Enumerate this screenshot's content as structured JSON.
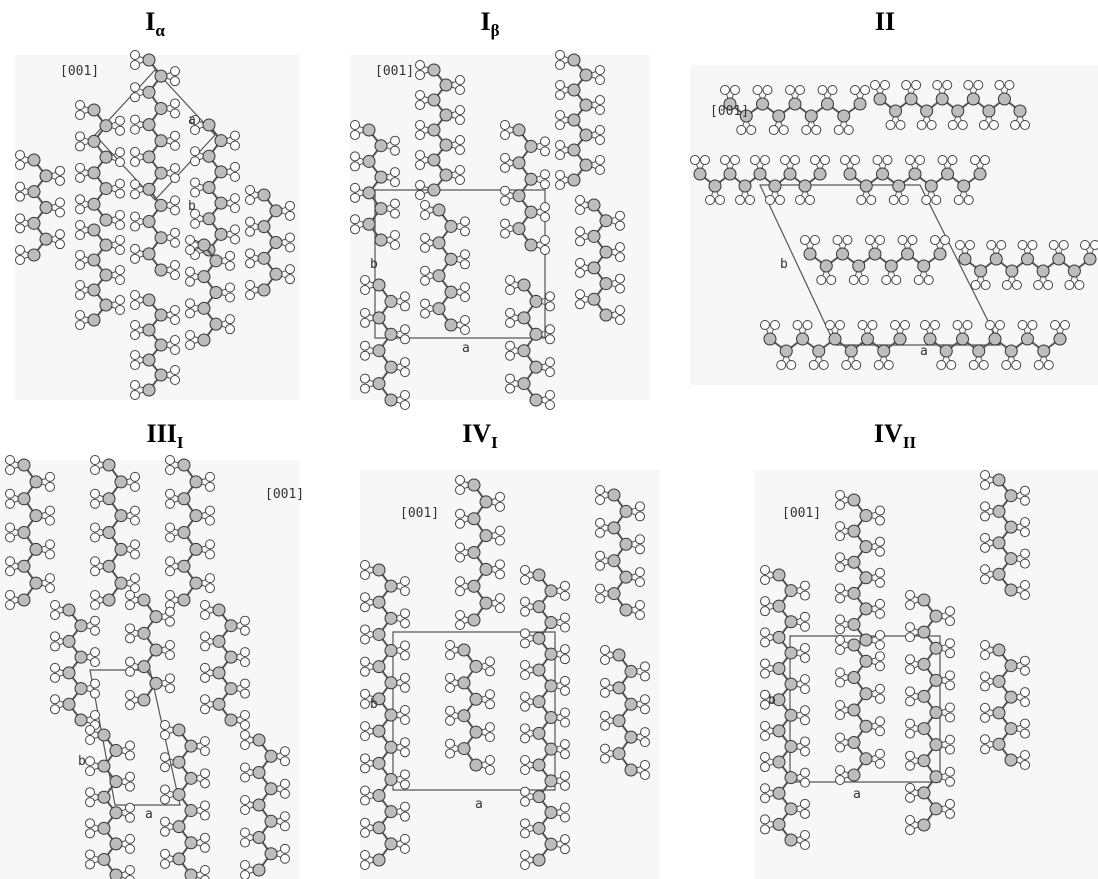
{
  "panels": [
    {
      "title": "I",
      "subscript": "α",
      "direction": "[001]",
      "axis_a": "a",
      "axis_b": "b"
    },
    {
      "title": "I",
      "subscript": "β",
      "direction": "[001]",
      "axis_a": "a",
      "axis_b": "b"
    },
    {
      "title": "II",
      "direction": "[001]",
      "axis_a": "a",
      "axis_b": "b"
    },
    {
      "title": "III",
      "subscript": "I",
      "direction": "[001]",
      "axis_a": "a",
      "axis_b": "b"
    },
    {
      "title": "IV",
      "subscript": "I",
      "direction": "[001]",
      "axis_a": "a",
      "axis_b": "b"
    },
    {
      "title": "IV",
      "subscript": "II",
      "direction": "[001]",
      "axis_a": "a",
      "axis_b": "b"
    }
  ]
}
